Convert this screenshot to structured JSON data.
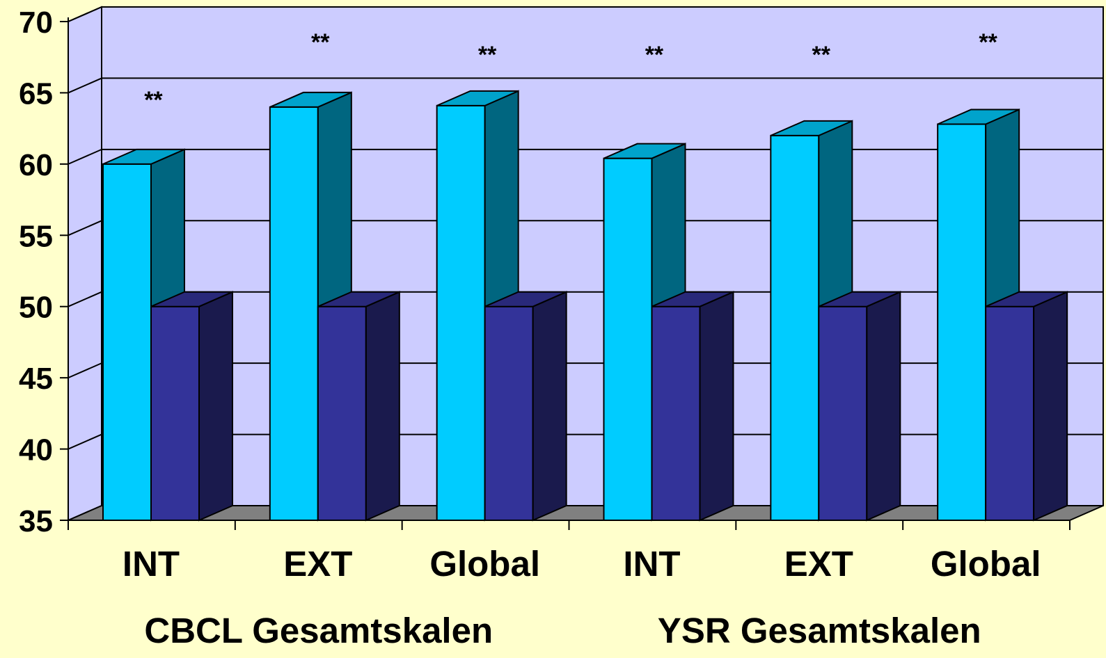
{
  "chart_data": {
    "type": "bar",
    "three_d": true,
    "title": "",
    "xlabel": "",
    "ylabel": "",
    "ylim": [
      35,
      70
    ],
    "yticks": [
      35,
      40,
      45,
      50,
      55,
      60,
      65,
      70
    ],
    "categories": [
      "INT",
      "EXT",
      "Global",
      "INT",
      "EXT",
      "Global"
    ],
    "groups": [
      {
        "label": "CBCL Gesamtskalen",
        "categories": [
          0,
          1,
          2
        ]
      },
      {
        "label": "YSR Gesamtskalen",
        "categories": [
          3,
          4,
          5
        ]
      }
    ],
    "series": [
      {
        "values": [
          60.0,
          64.0,
          64.1,
          60.4,
          62.0,
          62.8
        ]
      },
      {
        "values": [
          50,
          50,
          50,
          50,
          50,
          50
        ]
      }
    ],
    "annotations": [
      "**",
      "**",
      "**",
      "**",
      "**",
      "**"
    ],
    "grid": true,
    "legend": "none",
    "colors": {
      "page_background": "#ffffcc",
      "plot_background": "#ccccff",
      "floor": "#808080",
      "series_1_front": "#00ccff",
      "series_1_side": "#006680",
      "series_1_top": "#00a3cc",
      "series_2_front": "#333399",
      "series_2_side": "#1a1a4d",
      "series_2_top": "#29297a",
      "axis": "#000000"
    }
  }
}
